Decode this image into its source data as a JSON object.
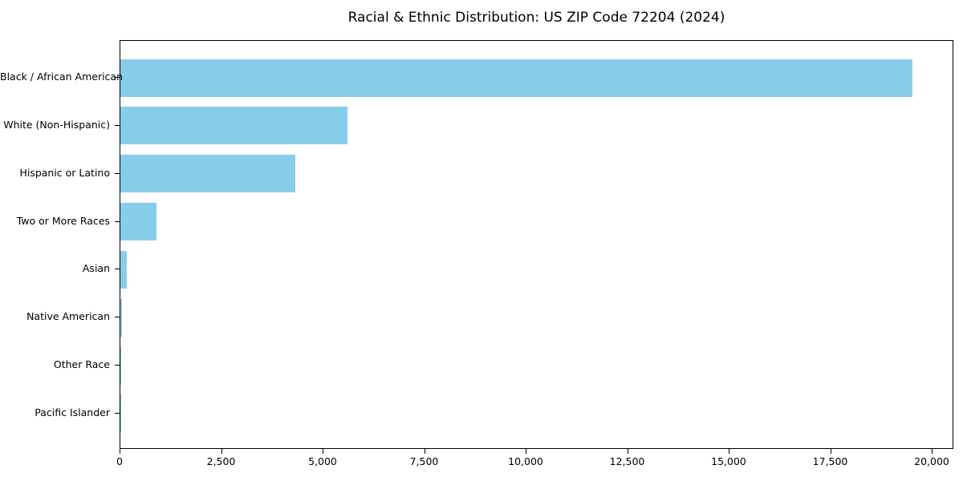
{
  "title": "Racial & Ethnic Distribution: US ZIP Code 72204 (2024)",
  "colors": {
    "bar": "#87ceeb",
    "axis": "#000000",
    "text": "#000000",
    "background": "#ffffff"
  },
  "chart_data": {
    "type": "bar",
    "orientation": "horizontal",
    "title": "Racial & Ethnic Distribution: US ZIP Code 72204 (2024)",
    "categories": [
      "Black / African American",
      "White (Non-Hispanic)",
      "Hispanic or Latino",
      "Two or More Races",
      "Asian",
      "Native American",
      "Other Race",
      "Pacific Islander"
    ],
    "values": [
      19500,
      5600,
      4300,
      880,
      160,
      30,
      12,
      6
    ],
    "xlabel": "",
    "ylabel": "",
    "xlim": [
      0,
      20000
    ],
    "xticks": [
      0,
      2500,
      5000,
      7500,
      10000,
      12500,
      15000,
      17500,
      20000
    ],
    "xtick_labels": [
      "0",
      "2,500",
      "5,000",
      "7,500",
      "10,000",
      "12,500",
      "15,000",
      "17,500",
      "20,000"
    ],
    "grid": false,
    "legend": "none",
    "bar_color": "#87ceeb"
  }
}
